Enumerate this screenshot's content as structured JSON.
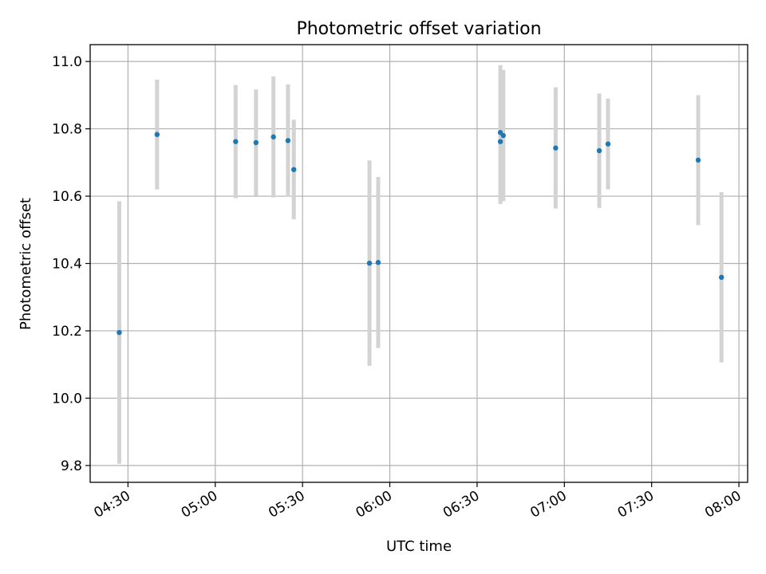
{
  "chart_data": {
    "type": "scatter",
    "title": "Photometric offset variation",
    "xlabel": "UTC time",
    "ylabel": "Photometric offset",
    "x_ticks": [
      "04:30",
      "05:00",
      "05:30",
      "06:00",
      "06:30",
      "07:00",
      "07:30",
      "08:00"
    ],
    "y_ticks": [
      "9.8",
      "10.0",
      "10.2",
      "10.4",
      "10.6",
      "10.8",
      "11.0"
    ],
    "xlim": [
      "04:17",
      "08:03"
    ],
    "ylim": [
      9.75,
      11.05
    ],
    "grid": true,
    "colors": {
      "point": "#1f77b4",
      "errorbar": "#d3d3d3",
      "grid": "#b0b0b0"
    },
    "points": [
      {
        "x": "04:27",
        "y": 10.195,
        "err": 0.39
      },
      {
        "x": "04:40",
        "y": 10.783,
        "err": 0.163
      },
      {
        "x": "05:07",
        "y": 10.762,
        "err": 0.168
      },
      {
        "x": "05:14",
        "y": 10.759,
        "err": 0.158
      },
      {
        "x": "05:20",
        "y": 10.776,
        "err": 0.18
      },
      {
        "x": "05:25",
        "y": 10.765,
        "err": 0.167
      },
      {
        "x": "05:27",
        "y": 10.679,
        "err": 0.148
      },
      {
        "x": "05:53",
        "y": 10.401,
        "err": 0.305
      },
      {
        "x": "05:56",
        "y": 10.403,
        "err": 0.254
      },
      {
        "x": "06:38",
        "y": 10.789,
        "err": 0.2
      },
      {
        "x": "06:38",
        "y": 10.762,
        "err": 0.185
      },
      {
        "x": "06:39",
        "y": 10.78,
        "err": 0.195
      },
      {
        "x": "06:57",
        "y": 10.743,
        "err": 0.18
      },
      {
        "x": "07:12",
        "y": 10.735,
        "err": 0.17
      },
      {
        "x": "07:15",
        "y": 10.755,
        "err": 0.135
      },
      {
        "x": "07:46",
        "y": 10.707,
        "err": 0.193
      },
      {
        "x": "07:54",
        "y": 10.359,
        "err": 0.253
      }
    ]
  }
}
